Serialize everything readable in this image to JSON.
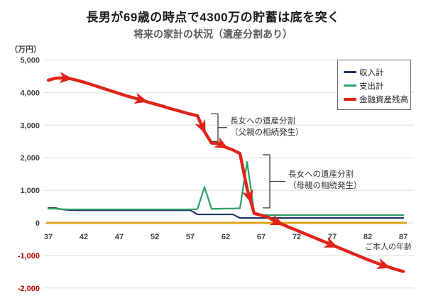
{
  "header": {
    "title": "長男が69歳の時点で4300万の貯蓄は底を突く",
    "subtitle": "将来の家計の状況（遺産分割あり）"
  },
  "legend": {
    "items": [
      {
        "label": "収入計",
        "color": "#1f3864"
      },
      {
        "label": "支出計",
        "color": "#2e9e68"
      },
      {
        "label": "金融資産残高",
        "color": "#e02419"
      }
    ]
  },
  "chart_data": {
    "type": "line",
    "title": "長男が69歳の時点で4300万の貯蓄は底を突く",
    "subtitle": "将来の家計の状況（遺産分割あり）",
    "grid": true,
    "legend_position": "top-right",
    "zero_line_color": "#dfa41e",
    "y_axis": {
      "unit_label": "（万円）",
      "min": -2000,
      "max": 5000,
      "tick_step": 1000,
      "ticks": [
        {
          "value": 5000,
          "label": "5,000"
        },
        {
          "value": 4000,
          "label": "4,000"
        },
        {
          "value": 3000,
          "label": "3,000"
        },
        {
          "value": 2000,
          "label": "2,000"
        },
        {
          "value": 1000,
          "label": "1,000"
        },
        {
          "value": 0,
          "label": "0"
        },
        {
          "value": -1000,
          "label": "-1,000"
        },
        {
          "value": -2000,
          "label": "-2,000"
        }
      ]
    },
    "x_axis": {
      "label": "ご本人の年齢",
      "min": 37,
      "max": 87,
      "tick_step": 5,
      "ticks": [
        37,
        42,
        47,
        52,
        57,
        62,
        67,
        72,
        77,
        82,
        87
      ]
    },
    "x": [
      37,
      38,
      39,
      40,
      41,
      42,
      43,
      44,
      45,
      46,
      47,
      48,
      49,
      50,
      51,
      52,
      53,
      54,
      55,
      56,
      57,
      58,
      59,
      60,
      61,
      62,
      63,
      64,
      65,
      66,
      67,
      68,
      69,
      70,
      71,
      72,
      73,
      74,
      75,
      76,
      77,
      78,
      79,
      80,
      81,
      82,
      83,
      84,
      85,
      86,
      87
    ],
    "series": [
      {
        "name": "収入計",
        "color": "#1f3864",
        "values": [
          455,
          455,
          410,
          395,
          390,
          390,
          390,
          390,
          390,
          390,
          390,
          390,
          390,
          390,
          390,
          390,
          390,
          390,
          390,
          390,
          390,
          260,
          260,
          260,
          260,
          260,
          260,
          150,
          150,
          150,
          150,
          150,
          150,
          150,
          150,
          150,
          150,
          150,
          150,
          150,
          150,
          150,
          150,
          150,
          150,
          150,
          150,
          150,
          150,
          150,
          150
        ]
      },
      {
        "name": "支出計",
        "color": "#2e9e68",
        "values": [
          435,
          435,
          420,
          415,
          415,
          415,
          415,
          415,
          415,
          415,
          415,
          415,
          415,
          415,
          415,
          415,
          415,
          415,
          415,
          415,
          415,
          420,
          1100,
          430,
          435,
          440,
          440,
          450,
          1870,
          330,
          245,
          240,
          240,
          240,
          240,
          240,
          240,
          240,
          240,
          240,
          240,
          240,
          240,
          240,
          240,
          240,
          240,
          240,
          240,
          240,
          240
        ]
      },
      {
        "name": "金融資産残高",
        "color": "#e02419",
        "values": [
          4380,
          4440,
          4450,
          4430,
          4380,
          4320,
          4250,
          4180,
          4110,
          4040,
          3970,
          3900,
          3840,
          3780,
          3710,
          3650,
          3590,
          3520,
          3460,
          3400,
          3340,
          3290,
          2800,
          2450,
          2440,
          2320,
          2240,
          2130,
          1050,
          290,
          235,
          170,
          45,
          -50,
          -140,
          -230,
          -320,
          -410,
          -500,
          -590,
          -680,
          -770,
          -860,
          -950,
          -1040,
          -1130,
          -1210,
          -1290,
          -1360,
          -1430,
          -1490
        ],
        "arrows_at_x": [
          39.4,
          50.0,
          58.7,
          61.4,
          65.3,
          69.2,
          76.8,
          84.2
        ]
      }
    ],
    "annotations": [
      {
        "lines": [
          "長女への遺産分割",
          "（父親の相続発生）"
        ],
        "bracket": {
          "age": 60.9,
          "value_top": 3350,
          "value_bottom": 2500
        },
        "leader_end_age": 62.2,
        "text": {
          "age": 62.6,
          "value_top": 3330
        }
      },
      {
        "lines": [
          "長女への遺産分割",
          "（母親の相続発生）"
        ],
        "bracket": {
          "age": 68.2,
          "value_top": 2090,
          "value_bottom": 460
        },
        "leader_end_age": 70.4,
        "text": {
          "age": 70.8,
          "value_top": 1700
        }
      }
    ]
  }
}
